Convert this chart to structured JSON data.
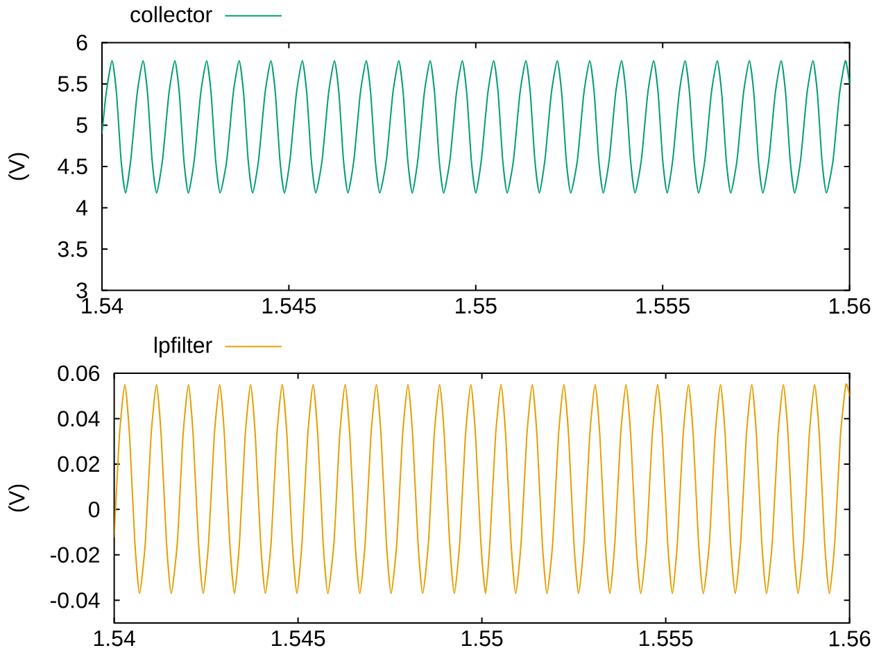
{
  "chart_data": [
    {
      "type": "line",
      "ylabel": "(V)",
      "legend": "top left",
      "xlim": [
        1.54,
        1.56
      ],
      "xticks": [
        1.54,
        1.545,
        1.55,
        1.555,
        1.56
      ],
      "ylim": [
        3,
        6
      ],
      "yticks": [
        3,
        3.5,
        4,
        4.5,
        5,
        5.5,
        6
      ],
      "series": [
        {
          "name": "collector",
          "color": "#009e73",
          "x": [
            1.54,
            1.54011,
            1.54027,
            1.54039,
            1.54051,
            1.54063,
            1.54077,
            1.54094,
            1.5411,
            1.54122,
            1.54134,
            1.54146,
            1.54162,
            1.54179,
            1.54195,
            1.54207,
            1.54219,
            1.54231,
            1.54247,
            1.54264,
            1.5428,
            1.54292,
            1.54304,
            1.54316,
            1.54334,
            1.54351,
            1.54367,
            1.54379,
            1.54391,
            1.54403,
            1.54419,
            1.54436,
            1.54452,
            1.54464,
            1.54476,
            1.54488,
            1.54503,
            1.5452,
            1.54536,
            1.54548,
            1.5456,
            1.54572,
            1.54589,
            1.54606,
            1.54622,
            1.54634,
            1.54646,
            1.54658,
            1.54674,
            1.54691,
            1.54707,
            1.54719,
            1.54731,
            1.54743,
            1.54761,
            1.54778,
            1.54794,
            1.54806,
            1.54818,
            1.5483,
            1.54845,
            1.54862,
            1.54878,
            1.5489,
            1.54902,
            1.54914,
            1.54931,
            1.54948,
            1.54964,
            1.54976,
            1.54988,
            1.55,
            1.55015,
            1.55032,
            1.55048,
            1.5506,
            1.55072,
            1.55084,
            1.55101,
            1.55118,
            1.55134,
            1.55146,
            1.55158,
            1.5517,
            1.55185,
            1.55202,
            1.55218,
            1.5523,
            1.55242,
            1.55254,
            1.55272,
            1.55289,
            1.55305,
            1.55317,
            1.55329,
            1.55341,
            1.55357,
            1.55374,
            1.5539,
            1.55402,
            1.55414,
            1.55426,
            1.55443,
            1.5546,
            1.55476,
            1.55488,
            1.555,
            1.55512,
            1.55527,
            1.55544,
            1.5556,
            1.55572,
            1.55584,
            1.55596,
            1.55613,
            1.5563,
            1.55646,
            1.55658,
            1.5567,
            1.55682,
            1.55699,
            1.55716,
            1.55732,
            1.55744,
            1.55756,
            1.55768,
            1.55784,
            1.55801,
            1.55817,
            1.55829,
            1.55841,
            1.55853,
            1.55869,
            1.55886,
            1.55902,
            1.55914,
            1.55926,
            1.55938,
            1.55956,
            1.55973,
            1.55989,
            1.56
          ],
          "values": [
            4.9,
            5.38,
            5.78,
            5.38,
            4.58,
            4.18,
            4.58,
            5.38,
            5.78,
            5.38,
            4.58,
            4.18,
            4.58,
            5.38,
            5.78,
            5.38,
            4.58,
            4.18,
            4.58,
            5.38,
            5.78,
            5.38,
            4.58,
            4.18,
            4.58,
            5.38,
            5.78,
            5.38,
            4.58,
            4.18,
            4.58,
            5.38,
            5.78,
            5.38,
            4.58,
            4.18,
            4.58,
            5.38,
            5.78,
            5.38,
            4.58,
            4.18,
            4.58,
            5.38,
            5.78,
            5.38,
            4.58,
            4.18,
            4.58,
            5.38,
            5.78,
            5.38,
            4.58,
            4.18,
            4.58,
            5.38,
            5.78,
            5.38,
            4.58,
            4.18,
            4.58,
            5.38,
            5.78,
            5.38,
            4.58,
            4.18,
            4.58,
            5.38,
            5.78,
            5.38,
            4.58,
            4.18,
            4.58,
            5.38,
            5.78,
            5.38,
            4.58,
            4.18,
            4.58,
            5.38,
            5.78,
            5.38,
            4.58,
            4.18,
            4.58,
            5.38,
            5.78,
            5.38,
            4.58,
            4.18,
            4.58,
            5.38,
            5.78,
            5.38,
            4.58,
            4.18,
            4.58,
            5.38,
            5.78,
            5.38,
            4.58,
            4.18,
            4.58,
            5.38,
            5.78,
            5.38,
            4.58,
            4.18,
            4.58,
            5.38,
            5.78,
            5.38,
            4.58,
            4.18,
            4.58,
            5.38,
            5.78,
            5.38,
            4.58,
            4.18,
            4.58,
            5.38,
            5.78,
            5.38,
            4.58,
            4.18,
            4.58,
            5.38,
            5.78,
            5.38,
            4.58,
            4.18,
            4.58,
            5.38,
            5.78,
            5.38,
            4.58,
            4.18,
            4.58,
            5.38,
            5.78,
            5.5
          ]
        }
      ]
    },
    {
      "type": "line",
      "ylabel": "(V)",
      "legend": "top left",
      "xlim": [
        1.54,
        1.56
      ],
      "xticks": [
        1.54,
        1.545,
        1.55,
        1.555,
        1.56
      ],
      "ylim": [
        -0.05,
        0.06
      ],
      "yticks": [
        -0.04,
        -0.02,
        0,
        0.02,
        0.04,
        0.06
      ],
      "series": [
        {
          "name": "lpfilter",
          "color": "#e69f00",
          "x": [
            1.54,
            1.54014,
            1.54029,
            1.54042,
            1.54056,
            1.54069,
            1.54085,
            1.541,
            1.54115,
            1.54128,
            1.54142,
            1.54155,
            1.54172,
            1.54187,
            1.54202,
            1.54215,
            1.54229,
            1.54242,
            1.54257,
            1.54272,
            1.54287,
            1.543,
            1.54314,
            1.54327,
            1.54341,
            1.54356,
            1.54371,
            1.54384,
            1.54398,
            1.54411,
            1.54427,
            1.54442,
            1.54457,
            1.5447,
            1.54484,
            1.54497,
            1.54511,
            1.54526,
            1.54541,
            1.54554,
            1.54568,
            1.54581,
            1.54598,
            1.54613,
            1.54628,
            1.54641,
            1.54655,
            1.54668,
            1.54683,
            1.54698,
            1.54713,
            1.54726,
            1.5474,
            1.54753,
            1.54769,
            1.54784,
            1.54799,
            1.54812,
            1.54826,
            1.54839,
            1.54855,
            1.5487,
            1.54885,
            1.54898,
            1.54912,
            1.54925,
            1.5494,
            1.54955,
            1.5497,
            1.54983,
            1.54997,
            1.5501,
            1.55022,
            1.55037,
            1.55052,
            1.55065,
            1.55079,
            1.55092,
            1.55107,
            1.55122,
            1.55137,
            1.5515,
            1.55164,
            1.55177,
            1.55193,
            1.55208,
            1.55223,
            1.55236,
            1.5525,
            1.55263,
            1.55278,
            1.55293,
            1.55308,
            1.55321,
            1.55335,
            1.55348,
            1.55362,
            1.55377,
            1.55392,
            1.55405,
            1.55419,
            1.55432,
            1.55448,
            1.55463,
            1.55478,
            1.55491,
            1.55505,
            1.55518,
            1.55532,
            1.55547,
            1.55562,
            1.55575,
            1.55589,
            1.55602,
            1.55619,
            1.55634,
            1.55649,
            1.55662,
            1.55676,
            1.55689,
            1.55704,
            1.55719,
            1.55734,
            1.55747,
            1.55761,
            1.55774,
            1.5579,
            1.55805,
            1.5582,
            1.55833,
            1.55847,
            1.5586,
            1.55875,
            1.5589,
            1.55905,
            1.55918,
            1.55932,
            1.55945,
            1.5596,
            1.55975,
            1.5599,
            1.56
          ],
          "values": [
            -0.012,
            0.032,
            0.055,
            0.032,
            -0.014,
            -0.037,
            -0.014,
            0.032,
            0.055,
            0.032,
            -0.014,
            -0.037,
            -0.014,
            0.032,
            0.055,
            0.032,
            -0.014,
            -0.037,
            -0.014,
            0.032,
            0.055,
            0.032,
            -0.014,
            -0.037,
            -0.014,
            0.032,
            0.055,
            0.032,
            -0.014,
            -0.037,
            -0.014,
            0.032,
            0.055,
            0.032,
            -0.014,
            -0.037,
            -0.014,
            0.032,
            0.055,
            0.032,
            -0.014,
            -0.037,
            -0.014,
            0.032,
            0.055,
            0.032,
            -0.014,
            -0.037,
            -0.014,
            0.032,
            0.055,
            0.032,
            -0.014,
            -0.037,
            -0.014,
            0.032,
            0.055,
            0.032,
            -0.014,
            -0.037,
            -0.014,
            0.032,
            0.055,
            0.032,
            -0.014,
            -0.037,
            -0.014,
            0.032,
            0.055,
            0.032,
            -0.014,
            -0.037,
            -0.014,
            0.032,
            0.055,
            0.032,
            -0.014,
            -0.037,
            -0.014,
            0.032,
            0.055,
            0.032,
            -0.014,
            -0.037,
            -0.014,
            0.032,
            0.055,
            0.032,
            -0.014,
            -0.037,
            -0.014,
            0.032,
            0.055,
            0.032,
            -0.014,
            -0.037,
            -0.014,
            0.032,
            0.055,
            0.032,
            -0.014,
            -0.037,
            -0.014,
            0.032,
            0.055,
            0.032,
            -0.014,
            -0.037,
            -0.014,
            0.032,
            0.055,
            0.032,
            -0.014,
            -0.037,
            -0.014,
            0.032,
            0.055,
            0.032,
            -0.014,
            -0.037,
            -0.014,
            0.032,
            0.055,
            0.032,
            -0.014,
            -0.037,
            -0.014,
            0.032,
            0.055,
            0.032,
            -0.014,
            -0.037,
            -0.014,
            0.032,
            0.055,
            0.032,
            -0.014,
            -0.037,
            -0.014,
            0.032,
            0.055,
            0.05
          ]
        }
      ]
    }
  ]
}
